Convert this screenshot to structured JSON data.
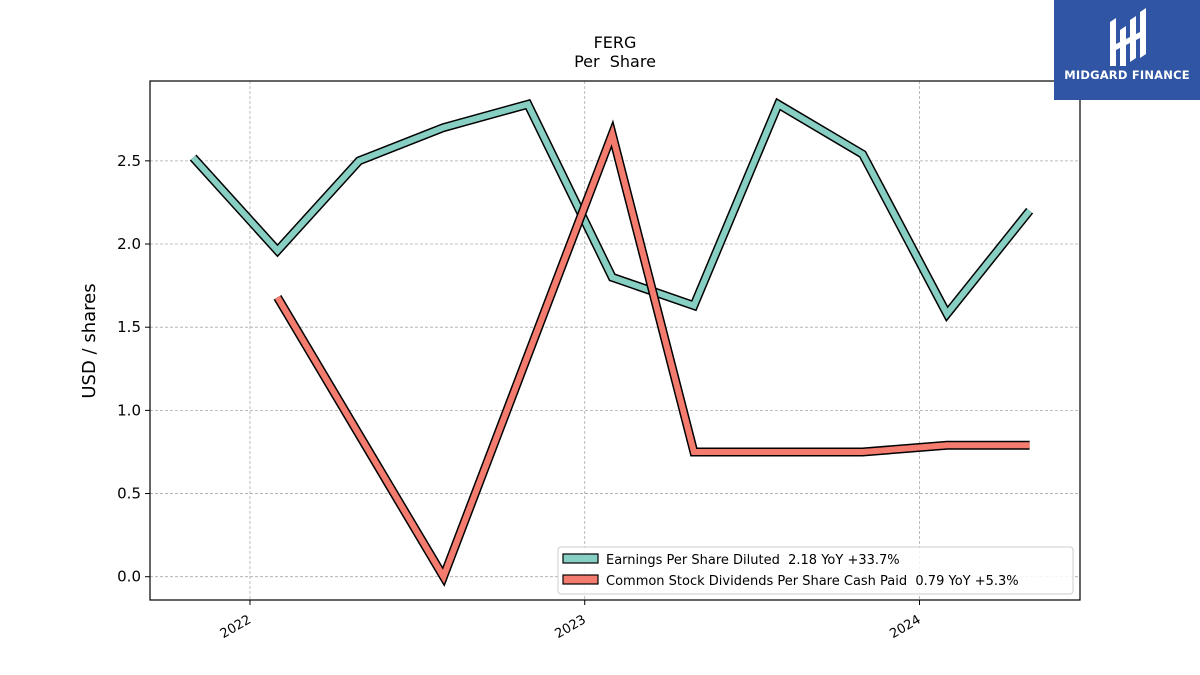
{
  "brand": {
    "logo_text": "MIDGARD FINANCE",
    "logo_bg": "#2f55a4",
    "logo_icon": "midgard-logo-icon"
  },
  "chart_data": {
    "type": "line",
    "title": "FERG",
    "subtitle": "Per  Share",
    "xlabel": "",
    "ylabel": "USD / shares",
    "ylim": [
      -0.14,
      2.98
    ],
    "xlim": [
      "2021-09-14",
      "2024-06-24"
    ],
    "yticks": [
      0.0,
      0.5,
      1.0,
      1.5,
      2.0,
      2.5
    ],
    "ytick_labels": [
      "0.0",
      "0.5",
      "1.0",
      "1.5",
      "2.0",
      "2.5"
    ],
    "xticks": [
      "2022-01-01",
      "2023-01-01",
      "2024-01-01"
    ],
    "xtick_labels": [
      "2022",
      "2023",
      "2024"
    ],
    "grid": true,
    "legend_position": "lower-right",
    "series": [
      {
        "name": "Earnings Per Share Diluted  2.18 YoY +33.7%",
        "color": "#88cfc3",
        "x": [
          "2021-10-31",
          "2022-01-31",
          "2022-04-30",
          "2022-07-31",
          "2022-10-31",
          "2023-01-31",
          "2023-04-30",
          "2023-07-31",
          "2023-10-31",
          "2024-01-31",
          "2024-04-30"
        ],
        "y": [
          2.52,
          1.96,
          2.5,
          2.7,
          2.84,
          1.8,
          1.63,
          2.84,
          2.54,
          1.58,
          2.2
        ]
      },
      {
        "name": "Common Stock Dividends Per Share Cash Paid  0.79 YoY +5.3%",
        "color": "#f47c6e",
        "x": [
          "2022-01-31",
          "2022-07-31",
          "2023-01-31",
          "2023-04-30",
          "2023-10-31",
          "2024-01-31",
          "2024-04-30"
        ],
        "y": [
          1.68,
          0.0,
          2.66,
          0.75,
          0.75,
          0.79,
          0.79
        ]
      }
    ]
  }
}
